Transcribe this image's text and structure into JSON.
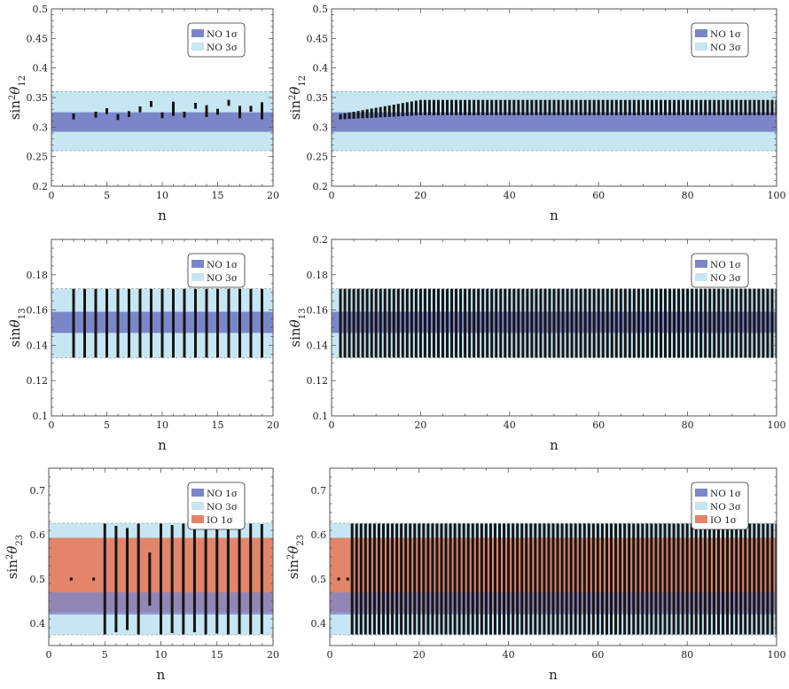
{
  "colors": {
    "no1": "#7b86c9",
    "no3": "#c6e6f1",
    "io1": "#e2856a",
    "bar": "#151515",
    "axis": "#555555"
  },
  "chart_data": [
    {
      "type": "interval",
      "id": "s12-small",
      "xlabel": "n",
      "ylabel_main": "sin",
      "ylabel_sup": "2",
      "ylabel_theta": "θ",
      "ylabel_sub": "12",
      "xlim": [
        0,
        20
      ],
      "ylim": [
        0.2,
        0.5
      ],
      "xticks": [
        0,
        5,
        10,
        15,
        20
      ],
      "yticks": [
        0.2,
        0.25,
        0.3,
        0.35,
        0.4,
        0.45,
        0.5
      ],
      "ytick_labels": [
        "0.2",
        "0.25",
        "0.3",
        "0.35",
        "0.4",
        "0.45",
        "0.5"
      ],
      "bands": [
        {
          "key": "no3",
          "label": "NO 3σ",
          "range": [
            0.26,
            0.36
          ]
        },
        {
          "key": "no1",
          "label": "NO 1σ",
          "range": [
            0.292,
            0.325
          ]
        }
      ],
      "legend": [
        {
          "key": "no1",
          "label": "NO 1σ"
        },
        {
          "key": "no3",
          "label": "NO 3σ"
        }
      ],
      "legend_position": "top-right",
      "intervals": [
        {
          "n": 2,
          "lo": 0.313,
          "hi": 0.323
        },
        {
          "n": 4,
          "lo": 0.316,
          "hi": 0.326
        },
        {
          "n": 5,
          "lo": 0.322,
          "hi": 0.332
        },
        {
          "n": 6,
          "lo": 0.312,
          "hi": 0.322
        },
        {
          "n": 7,
          "lo": 0.317,
          "hi": 0.327
        },
        {
          "n": 8,
          "lo": 0.325,
          "hi": 0.335
        },
        {
          "n": 9,
          "lo": 0.334,
          "hi": 0.344
        },
        {
          "n": 10,
          "lo": 0.315,
          "hi": 0.325
        },
        {
          "n": 11,
          "lo": 0.319,
          "hi": 0.343
        },
        {
          "n": 12,
          "lo": 0.316,
          "hi": 0.326
        },
        {
          "n": 13,
          "lo": 0.331,
          "hi": 0.341
        },
        {
          "n": 14,
          "lo": 0.317,
          "hi": 0.337
        },
        {
          "n": 15,
          "lo": 0.321,
          "hi": 0.331
        },
        {
          "n": 16,
          "lo": 0.336,
          "hi": 0.346
        },
        {
          "n": 17,
          "lo": 0.315,
          "hi": 0.336
        },
        {
          "n": 18,
          "lo": 0.326,
          "hi": 0.336
        },
        {
          "n": 19,
          "lo": 0.313,
          "hi": 0.342
        }
      ]
    },
    {
      "type": "interval",
      "id": "s12-large",
      "xlabel": "n",
      "ylabel_main": "sin",
      "ylabel_sup": "2",
      "ylabel_theta": "θ",
      "ylabel_sub": "12",
      "xlim": [
        0,
        100
      ],
      "ylim": [
        0.2,
        0.5
      ],
      "xticks": [
        0,
        20,
        40,
        60,
        80,
        100
      ],
      "yticks": [
        0.2,
        0.25,
        0.3,
        0.35,
        0.4,
        0.45,
        0.5
      ],
      "ytick_labels": [
        "0.2",
        "0.25",
        "0.3",
        "0.35",
        "0.4",
        "0.45",
        "0.5"
      ],
      "bands": [
        {
          "key": "no3",
          "label": "NO 3σ",
          "range": [
            0.26,
            0.36
          ]
        },
        {
          "key": "no1",
          "label": "NO 1σ",
          "range": [
            0.292,
            0.325
          ]
        }
      ],
      "legend": [
        {
          "key": "no1",
          "label": "NO 1σ"
        },
        {
          "key": "no3",
          "label": "NO 3σ"
        }
      ],
      "legend_position": "top-right",
      "interval_range": {
        "from": 2,
        "to": 100,
        "lo_start": 0.313,
        "lo_end": 0.32,
        "hi_start": 0.322,
        "hi_end": 0.346,
        "hi_saturate_n": 20
      }
    },
    {
      "type": "interval",
      "id": "s13-small",
      "xlabel": "n",
      "ylabel_main": "sin",
      "ylabel_sup": "",
      "ylabel_theta": "θ",
      "ylabel_sub": "13",
      "xlim": [
        0,
        20
      ],
      "ylim": [
        0.1,
        0.2
      ],
      "xticks": [
        0,
        5,
        10,
        15,
        20
      ],
      "yticks": [
        0.1,
        0.12,
        0.14,
        0.16,
        0.18
      ],
      "ytick_labels": [
        "0.1",
        "0.12",
        "0.14",
        "0.16",
        "0.18"
      ],
      "bands": [
        {
          "key": "no3",
          "label": "NO 3σ",
          "range": [
            0.133,
            0.172
          ]
        },
        {
          "key": "no1",
          "label": "NO 1σ",
          "range": [
            0.147,
            0.159
          ]
        }
      ],
      "legend": [
        {
          "key": "no1",
          "label": "NO 1σ"
        },
        {
          "key": "no3",
          "label": "NO 3σ"
        }
      ],
      "legend_position": "top-right",
      "interval_range": {
        "from": 2,
        "to": 19,
        "lo_start": 0.133,
        "lo_end": 0.133,
        "hi_start": 0.172,
        "hi_end": 0.172,
        "hi_saturate_n": 2
      }
    },
    {
      "type": "interval",
      "id": "s13-large",
      "xlabel": "n",
      "ylabel_main": "sin",
      "ylabel_sup": "",
      "ylabel_theta": "θ",
      "ylabel_sub": "13",
      "xlim": [
        0,
        100
      ],
      "ylim": [
        0.1,
        0.2
      ],
      "xticks": [
        0,
        20,
        40,
        60,
        80,
        100
      ],
      "yticks": [
        0.1,
        0.12,
        0.14,
        0.16,
        0.18,
        0.2
      ],
      "ytick_labels": [
        "0.1",
        "0.12",
        "0.14",
        "0.16",
        "0.18",
        "0.2"
      ],
      "bands": [
        {
          "key": "no3",
          "label": "NO 3σ",
          "range": [
            0.133,
            0.172
          ]
        },
        {
          "key": "no1",
          "label": "NO 1σ",
          "range": [
            0.147,
            0.159
          ]
        }
      ],
      "legend": [
        {
          "key": "no1",
          "label": "NO 1σ"
        },
        {
          "key": "no3",
          "label": "NO 3σ"
        }
      ],
      "legend_position": "top-right",
      "interval_range": {
        "from": 2,
        "to": 100,
        "lo_start": 0.133,
        "lo_end": 0.133,
        "hi_start": 0.172,
        "hi_end": 0.172,
        "hi_saturate_n": 2
      }
    },
    {
      "type": "interval",
      "id": "s23-small",
      "xlabel": "n",
      "ylabel_main": "sin",
      "ylabel_sup": "2",
      "ylabel_theta": "θ",
      "ylabel_sub": "23",
      "xlim": [
        0,
        20
      ],
      "ylim": [
        0.35,
        0.75
      ],
      "xticks": [
        0,
        5,
        10,
        15,
        20
      ],
      "yticks": [
        0.4,
        0.5,
        0.6,
        0.7
      ],
      "ytick_labels": [
        "0.4",
        "0.5",
        "0.6",
        "0.7"
      ],
      "bands": [
        {
          "key": "no3",
          "label": "NO 3σ",
          "range": [
            0.374,
            0.626
          ]
        },
        {
          "key": "io1",
          "label": "IO 1σ",
          "range": [
            0.425,
            0.593
          ]
        },
        {
          "key": "no1",
          "label": "NO 1σ",
          "range": [
            0.42,
            0.47
          ]
        }
      ],
      "legend": [
        {
          "key": "no1",
          "label": "NO 1σ"
        },
        {
          "key": "no3",
          "label": "NO 3σ"
        },
        {
          "key": "io1",
          "label": "IO 1σ"
        }
      ],
      "legend_position": "top-right",
      "intervals": [
        {
          "n": 2,
          "lo": 0.499,
          "hi": 0.501
        },
        {
          "n": 4,
          "lo": 0.499,
          "hi": 0.501
        },
        {
          "n": 5,
          "lo": 0.375,
          "hi": 0.625
        },
        {
          "n": 6,
          "lo": 0.38,
          "hi": 0.62
        },
        {
          "n": 7,
          "lo": 0.385,
          "hi": 0.615
        },
        {
          "n": 8,
          "lo": 0.375,
          "hi": 0.625
        },
        {
          "n": 9,
          "lo": 0.44,
          "hi": 0.56
        },
        {
          "n": 10,
          "lo": 0.375,
          "hi": 0.625
        },
        {
          "n": 11,
          "lo": 0.378,
          "hi": 0.622
        },
        {
          "n": 12,
          "lo": 0.375,
          "hi": 0.625
        },
        {
          "n": 13,
          "lo": 0.38,
          "hi": 0.62
        },
        {
          "n": 14,
          "lo": 0.375,
          "hi": 0.625
        },
        {
          "n": 15,
          "lo": 0.377,
          "hi": 0.623
        },
        {
          "n": 16,
          "lo": 0.375,
          "hi": 0.625
        },
        {
          "n": 17,
          "lo": 0.376,
          "hi": 0.624
        },
        {
          "n": 18,
          "lo": 0.375,
          "hi": 0.625
        },
        {
          "n": 19,
          "lo": 0.376,
          "hi": 0.624
        }
      ]
    },
    {
      "type": "interval",
      "id": "s23-large",
      "xlabel": "n",
      "ylabel_main": "sin",
      "ylabel_sup": "2",
      "ylabel_theta": "θ",
      "ylabel_sub": "23",
      "xlim": [
        0,
        100
      ],
      "ylim": [
        0.35,
        0.75
      ],
      "xticks": [
        0,
        20,
        40,
        60,
        80,
        100
      ],
      "yticks": [
        0.4,
        0.5,
        0.6,
        0.7
      ],
      "ytick_labels": [
        "0.4",
        "0.5",
        "0.6",
        "0.7"
      ],
      "bands": [
        {
          "key": "no3",
          "label": "NO 3σ",
          "range": [
            0.374,
            0.626
          ]
        },
        {
          "key": "io1",
          "label": "IO 1σ",
          "range": [
            0.425,
            0.593
          ]
        },
        {
          "key": "no1",
          "label": "NO 1σ",
          "range": [
            0.42,
            0.47
          ]
        }
      ],
      "legend": [
        {
          "key": "no1",
          "label": "NO 1σ"
        },
        {
          "key": "no3",
          "label": "NO 3σ"
        },
        {
          "key": "io1",
          "label": "IO 1σ"
        }
      ],
      "legend_position": "top-right",
      "intervals": [
        {
          "n": 2,
          "lo": 0.499,
          "hi": 0.501
        },
        {
          "n": 4,
          "lo": 0.499,
          "hi": 0.501
        }
      ],
      "interval_range": {
        "from": 5,
        "to": 100,
        "lo_start": 0.375,
        "lo_end": 0.375,
        "hi_start": 0.625,
        "hi_end": 0.625,
        "hi_saturate_n": 5
      }
    }
  ]
}
